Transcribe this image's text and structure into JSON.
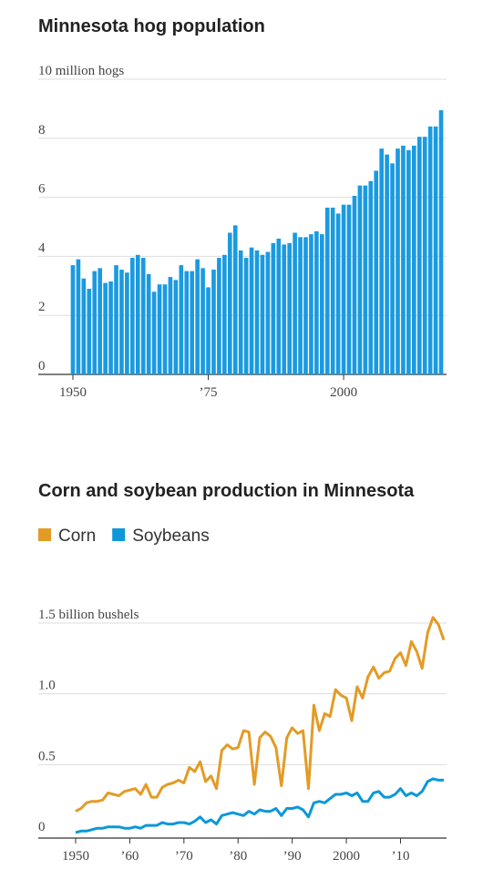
{
  "chart_data": [
    {
      "type": "bar",
      "title": "Minnesota hog population",
      "color": "#1a9ae0",
      "x": [
        1950,
        1951,
        1952,
        1953,
        1954,
        1955,
        1956,
        1957,
        1958,
        1959,
        1960,
        1961,
        1962,
        1963,
        1964,
        1965,
        1966,
        1967,
        1968,
        1969,
        1970,
        1971,
        1972,
        1973,
        1974,
        1975,
        1976,
        1977,
        1978,
        1979,
        1980,
        1981,
        1982,
        1983,
        1984,
        1985,
        1986,
        1987,
        1988,
        1989,
        1990,
        1991,
        1992,
        1993,
        1994,
        1995,
        1996,
        1997,
        1998,
        1999,
        2000,
        2001,
        2002,
        2003,
        2004,
        2005,
        2006,
        2007,
        2008,
        2009,
        2010,
        2011,
        2012,
        2013,
        2014,
        2015,
        2016,
        2017,
        2018
      ],
      "values": [
        3.7,
        3.9,
        3.25,
        2.9,
        3.5,
        3.6,
        3.1,
        3.15,
        3.7,
        3.55,
        3.45,
        3.95,
        4.05,
        3.95,
        3.4,
        2.8,
        3.05,
        3.05,
        3.3,
        3.2,
        3.7,
        3.5,
        3.5,
        3.9,
        3.6,
        2.95,
        3.55,
        3.95,
        4.05,
        4.8,
        5.05,
        4.2,
        3.95,
        4.3,
        4.2,
        4.05,
        4.15,
        4.45,
        4.6,
        4.4,
        4.45,
        4.8,
        4.65,
        4.65,
        4.75,
        4.85,
        4.75,
        5.65,
        5.65,
        5.45,
        5.75,
        5.75,
        6.05,
        6.4,
        6.4,
        6.55,
        6.9,
        7.65,
        7.45,
        7.15,
        7.65,
        7.75,
        7.6,
        7.75,
        8.05,
        8.05,
        8.4,
        8.4,
        8.95
      ],
      "xlim": [
        1949.5,
        2018.5
      ],
      "xticks": [
        1950,
        {
          "value": 1975,
          "label": "’75"
        },
        2000
      ],
      "ylim": [
        0,
        10
      ],
      "yticks": [
        0,
        2,
        4,
        6,
        8,
        {
          "value": 10,
          "label": "10 million hogs"
        }
      ],
      "grid": true
    },
    {
      "type": "line",
      "title": "Corn and soybean production in Minnesota",
      "x": [
        1950,
        1951,
        1952,
        1953,
        1954,
        1955,
        1956,
        1957,
        1958,
        1959,
        1960,
        1961,
        1962,
        1963,
        1964,
        1965,
        1966,
        1967,
        1968,
        1969,
        1970,
        1971,
        1972,
        1973,
        1974,
        1975,
        1976,
        1977,
        1978,
        1979,
        1980,
        1981,
        1982,
        1983,
        1984,
        1985,
        1986,
        1987,
        1988,
        1989,
        1990,
        1991,
        1992,
        1993,
        1994,
        1995,
        1996,
        1997,
        1998,
        1999,
        2000,
        2001,
        2002,
        2003,
        2004,
        2005,
        2006,
        2007,
        2008,
        2009,
        2010,
        2011,
        2012,
        2013,
        2014,
        2015,
        2016,
        2017,
        2018
      ],
      "series": [
        {
          "name": "Corn",
          "color": "#e39b26",
          "values": [
            0.17,
            0.19,
            0.23,
            0.24,
            0.24,
            0.25,
            0.3,
            0.29,
            0.28,
            0.31,
            0.32,
            0.33,
            0.29,
            0.36,
            0.27,
            0.27,
            0.34,
            0.36,
            0.37,
            0.39,
            0.37,
            0.48,
            0.45,
            0.52,
            0.38,
            0.42,
            0.33,
            0.6,
            0.64,
            0.61,
            0.62,
            0.74,
            0.73,
            0.36,
            0.69,
            0.73,
            0.7,
            0.62,
            0.35,
            0.69,
            0.76,
            0.72,
            0.74,
            0.33,
            0.92,
            0.74,
            0.86,
            0.84,
            1.03,
            0.99,
            0.97,
            0.81,
            1.05,
            0.97,
            1.12,
            1.19,
            1.11,
            1.15,
            1.16,
            1.25,
            1.29,
            1.2,
            1.37,
            1.3,
            1.18,
            1.43,
            1.54,
            1.49,
            1.38
          ]
        },
        {
          "name": "Soybeans",
          "color": "#0c98d8",
          "values": [
            0.02,
            0.03,
            0.03,
            0.04,
            0.05,
            0.05,
            0.06,
            0.06,
            0.06,
            0.05,
            0.05,
            0.06,
            0.05,
            0.07,
            0.07,
            0.07,
            0.09,
            0.08,
            0.08,
            0.09,
            0.09,
            0.08,
            0.1,
            0.13,
            0.09,
            0.11,
            0.08,
            0.14,
            0.15,
            0.16,
            0.15,
            0.14,
            0.17,
            0.15,
            0.18,
            0.17,
            0.17,
            0.19,
            0.14,
            0.19,
            0.19,
            0.2,
            0.18,
            0.13,
            0.23,
            0.24,
            0.23,
            0.26,
            0.29,
            0.29,
            0.3,
            0.28,
            0.3,
            0.24,
            0.24,
            0.3,
            0.31,
            0.27,
            0.27,
            0.29,
            0.33,
            0.28,
            0.3,
            0.28,
            0.31,
            0.38,
            0.4,
            0.39,
            0.39
          ]
        }
      ],
      "xlim": [
        1950,
        2018
      ],
      "xticks": [
        1950,
        {
          "value": 1960,
          "label": "’60"
        },
        {
          "value": 1970,
          "label": "’70"
        },
        {
          "value": 1980,
          "label": "’80"
        },
        {
          "value": 1990,
          "label": "’90"
        },
        2000,
        {
          "value": 2010,
          "label": "’10"
        }
      ],
      "ylim": [
        0,
        1.5
      ],
      "yticks": [
        0,
        0.5,
        {
          "value": 1.0,
          "label": "1.0"
        },
        {
          "value": 1.5,
          "label": "1.5 billion bushels"
        }
      ],
      "grid": true,
      "legend": "top"
    }
  ]
}
